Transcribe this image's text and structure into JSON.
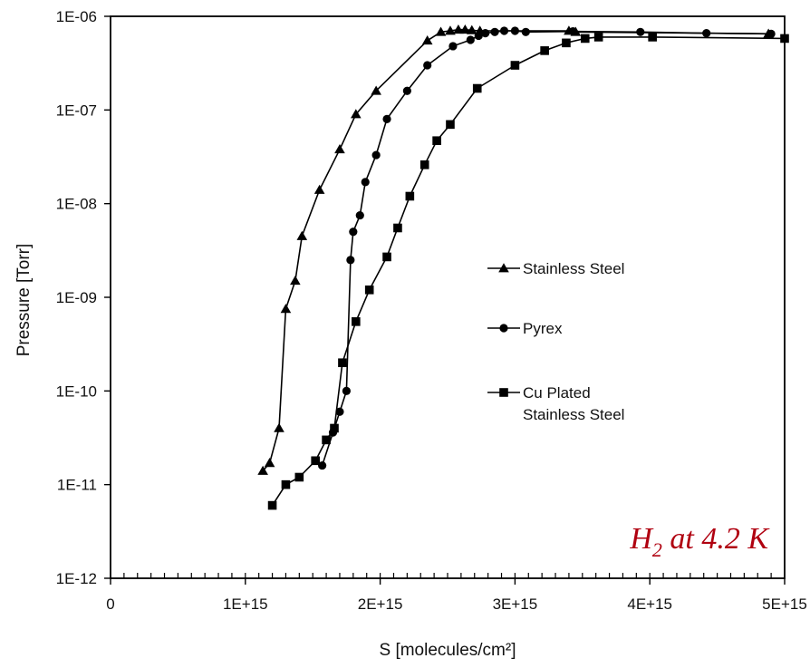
{
  "chart_data": {
    "type": "line",
    "xlabel": "S [molecules/cm²]",
    "ylabel": "Pressure [Torr]",
    "xlim": [
      0,
      5000000000000000.0
    ],
    "ylim": [
      1e-12,
      1e-06
    ],
    "yscale": "log",
    "x_ticks": [
      {
        "value": 0,
        "label": "0"
      },
      {
        "value": 1000000000000000.0,
        "label": "1E+15"
      },
      {
        "value": 2000000000000000.0,
        "label": "2E+15"
      },
      {
        "value": 3000000000000000.0,
        "label": "3E+15"
      },
      {
        "value": 4000000000000000.0,
        "label": "4E+15"
      },
      {
        "value": 5000000000000000.0,
        "label": "5E+15"
      }
    ],
    "y_ticks": [
      {
        "value": 1e-06,
        "label": "1E-06"
      },
      {
        "value": 1e-07,
        "label": "1E-07"
      },
      {
        "value": 1e-08,
        "label": "1E-08"
      },
      {
        "value": 1e-09,
        "label": "1E-09"
      },
      {
        "value": 1e-10,
        "label": "1E-10"
      },
      {
        "value": 1e-11,
        "label": "1E-11"
      },
      {
        "value": 1e-12,
        "label": "1E-12"
      }
    ],
    "grid": false,
    "legend_position": "right-middle",
    "annotation": {
      "main": "H",
      "sub": "2",
      "rest": " at 4.2 K",
      "color": "#b00010"
    },
    "series": [
      {
        "name": "Stainless Steel",
        "marker": "triangle",
        "x": [
          1130000000000000.0,
          1180000000000000.0,
          1250000000000000.0,
          1300000000000000.0,
          1370000000000000.0,
          1420000000000000.0,
          1550000000000000.0,
          1700000000000000.0,
          1820000000000000.0,
          1970000000000000.0,
          2350000000000000.0,
          2450000000000000.0,
          2520000000000000.0,
          2580000000000000.0,
          2630000000000000.0,
          2680000000000000.0,
          2740000000000000.0,
          3400000000000000.0,
          3450000000000000.0,
          4880000000000000.0
        ],
        "y": [
          1.4e-11,
          1.7e-11,
          4e-11,
          7.5e-10,
          1.5e-09,
          4.5e-09,
          1.4e-08,
          3.8e-08,
          9e-08,
          1.6e-07,
          5.5e-07,
          6.8e-07,
          7e-07,
          7.2e-07,
          7.2e-07,
          7.1e-07,
          7e-07,
          7e-07,
          6.8e-07,
          6.5e-07
        ]
      },
      {
        "name": "Pyrex",
        "marker": "circle",
        "x": [
          1570000000000000.0,
          1650000000000000.0,
          1700000000000000.0,
          1750000000000000.0,
          1780000000000000.0,
          1800000000000000.0,
          1850000000000000.0,
          1890000000000000.0,
          1970000000000000.0,
          2050000000000000.0,
          2200000000000000.0,
          2350000000000000.0,
          2540000000000000.0,
          2670000000000000.0,
          2730000000000000.0,
          2780000000000000.0,
          2850000000000000.0,
          2920000000000000.0,
          3000000000000000.0,
          3080000000000000.0,
          3430000000000000.0,
          3930000000000000.0,
          4420000000000000.0,
          4900000000000000.0
        ],
        "y": [
          1.6e-11,
          3.6e-11,
          6e-11,
          1e-10,
          2.5e-09,
          5e-09,
          7.5e-09,
          1.7e-08,
          3.3e-08,
          8e-08,
          1.6e-07,
          3e-07,
          4.8e-07,
          5.6e-07,
          6.2e-07,
          6.6e-07,
          6.8e-07,
          7e-07,
          7e-07,
          6.8e-07,
          6.9e-07,
          6.8e-07,
          6.6e-07,
          6.5e-07
        ]
      },
      {
        "name": "Cu Plated\nStainless Steel",
        "marker": "square",
        "x": [
          1200000000000000.0,
          1300000000000000.0,
          1400000000000000.0,
          1520000000000000.0,
          1600000000000000.0,
          1660000000000000.0,
          1720000000000000.0,
          1820000000000000.0,
          1920000000000000.0,
          2050000000000000.0,
          2130000000000000.0,
          2220000000000000.0,
          2330000000000000.0,
          2420000000000000.0,
          2520000000000000.0,
          2720000000000000.0,
          3000000000000000.0,
          3220000000000000.0,
          3380000000000000.0,
          3520000000000000.0,
          3620000000000000.0,
          4020000000000000.0,
          5000000000000000.0
        ],
        "y": [
          6e-12,
          1e-11,
          1.2e-11,
          1.8e-11,
          3e-11,
          4e-11,
          2e-10,
          5.5e-10,
          1.2e-09,
          2.7e-09,
          5.5e-09,
          1.2e-08,
          2.6e-08,
          4.7e-08,
          7e-08,
          1.7e-07,
          3e-07,
          4.3e-07,
          5.2e-07,
          5.8e-07,
          6e-07,
          6e-07,
          5.8e-07
        ]
      }
    ]
  }
}
